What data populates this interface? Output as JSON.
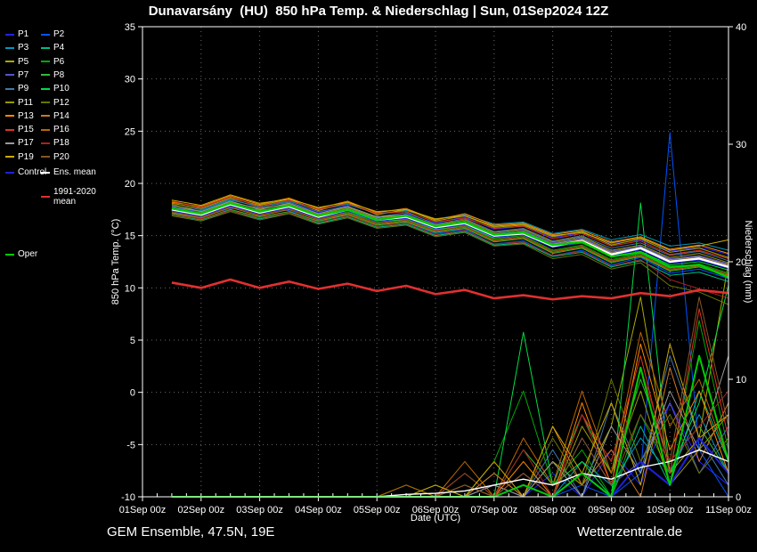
{
  "title": "Dunavarsány  (HU)  850 hPa Temp. & Niederschlag | Sun, 01Sep2024 12Z",
  "footer": {
    "left": "GEM Ensemble, 47.5N, 19E",
    "right": "Wetterzentrale.de"
  },
  "chart_data": {
    "type": "line",
    "title": "Dunavarsány  (HU)  850 hPa Temp. & Niederschlag | Sun, 01Sep2024 12Z",
    "x_axis": {
      "label": "Date (UTC)",
      "range_hours": [
        0,
        240
      ],
      "tick_hours": [
        0,
        24,
        48,
        72,
        96,
        120,
        144,
        168,
        192,
        216,
        240
      ],
      "tick_labels": [
        "01Sep 00z",
        "02Sep 00z",
        "03Sep 00z",
        "04Sep 00z",
        "05Sep 00z",
        "06Sep 00z",
        "07Sep 00z",
        "08Sep 00z",
        "09Sep 00z",
        "10Sep 00z",
        "11Sep 00z"
      ]
    },
    "y_left": {
      "label": "850 hPa Temp. (°C)",
      "min": -10,
      "max": 35,
      "ticks": [
        35,
        30,
        25,
        20,
        15,
        10,
        5,
        0,
        -5,
        -10
      ]
    },
    "y_right": {
      "label": "Niederschlag (mm)",
      "min": 0,
      "max": 40,
      "ticks": [
        40,
        30,
        20,
        10,
        0
      ]
    },
    "x_hours": [
      12,
      24,
      36,
      48,
      60,
      72,
      84,
      96,
      108,
      120,
      132,
      144,
      156,
      168,
      180,
      192,
      204,
      216,
      228,
      240
    ],
    "members": [
      {
        "name": "P1",
        "color": "#2222ff",
        "temp": [
          17.8,
          17.2,
          18.3,
          17.0,
          18.1,
          17.2,
          17.9,
          16.2,
          17.1,
          16.2,
          16.8,
          15.6,
          15.9,
          14.8,
          15.3,
          14.2,
          14.6,
          13.5,
          13.9,
          13.2
        ],
        "precip": [
          0,
          0,
          0,
          0,
          0,
          0,
          0,
          0,
          0,
          0,
          0,
          1,
          0,
          2,
          0,
          4,
          1,
          8,
          3,
          1
        ]
      },
      {
        "name": "P2",
        "color": "#0055ff",
        "temp": [
          17.2,
          16.8,
          17.6,
          17.5,
          17.4,
          16.3,
          17.1,
          16.9,
          16.2,
          15.2,
          15.6,
          14.2,
          14.5,
          13.1,
          13.6,
          12.2,
          12.9,
          11.4,
          11.8,
          10.9
        ],
        "precip": [
          0,
          0,
          0,
          0,
          0,
          0,
          0,
          0,
          0,
          0,
          0,
          0,
          0,
          0,
          1,
          0,
          2,
          31,
          4,
          0
        ]
      },
      {
        "name": "P3",
        "color": "#0099bb",
        "temp": [
          17.6,
          17.4,
          18.4,
          17.8,
          18.3,
          17.5,
          18.0,
          17.1,
          17.4,
          16.6,
          17.0,
          16.1,
          16.3,
          15.2,
          15.6,
          14.6,
          15.1,
          14.0,
          14.3,
          13.6
        ],
        "precip": [
          0,
          0,
          0,
          0,
          0,
          0,
          0,
          0,
          0,
          0,
          1,
          0,
          2,
          0,
          3,
          1,
          5,
          2,
          7,
          2
        ]
      },
      {
        "name": "P4",
        "color": "#00bb88",
        "temp": [
          17.0,
          16.5,
          17.4,
          16.6,
          17.2,
          16.2,
          16.8,
          15.8,
          16.1,
          15.0,
          15.4,
          14.1,
          14.3,
          13.0,
          13.4,
          12.0,
          12.6,
          11.2,
          11.5,
          10.6
        ],
        "precip": [
          0,
          0,
          0,
          0,
          0,
          0,
          0,
          0,
          0,
          0,
          0,
          0,
          1,
          0,
          2,
          0,
          6,
          1,
          9,
          3
        ]
      },
      {
        "name": "P5",
        "color": "#aaaa00",
        "temp": [
          18.1,
          17.6,
          18.6,
          17.9,
          18.5,
          17.4,
          18.2,
          17.0,
          17.5,
          16.4,
          16.9,
          15.8,
          16.0,
          14.9,
          15.4,
          14.1,
          14.7,
          13.4,
          13.8,
          12.9
        ],
        "precip": [
          0,
          0,
          0,
          0,
          0,
          0,
          0,
          0,
          0,
          0,
          0,
          2,
          0,
          3,
          1,
          6,
          17,
          2,
          5,
          20
        ]
      },
      {
        "name": "P6",
        "color": "#00aa00",
        "temp": [
          17.3,
          16.9,
          17.9,
          17.1,
          17.7,
          16.6,
          17.3,
          16.3,
          16.6,
          15.5,
          16.0,
          14.7,
          15.0,
          13.6,
          14.1,
          12.7,
          13.3,
          11.9,
          12.3,
          11.4
        ],
        "precip": [
          0,
          0,
          0,
          0,
          0,
          0,
          0,
          0,
          0,
          1,
          0,
          3,
          9,
          1,
          4,
          0,
          7,
          2,
          15,
          4
        ]
      },
      {
        "name": "P7",
        "color": "#5555cc",
        "temp": [
          17.7,
          17.1,
          18.1,
          17.3,
          17.9,
          16.9,
          17.6,
          16.6,
          16.9,
          15.9,
          16.4,
          15.2,
          15.5,
          14.3,
          14.8,
          13.5,
          14.0,
          12.8,
          13.1,
          12.3
        ],
        "precip": [
          0,
          0,
          0,
          0,
          0,
          0,
          0,
          0,
          0,
          0,
          0,
          0,
          2,
          0,
          5,
          1,
          3,
          8,
          2,
          6
        ]
      },
      {
        "name": "P8",
        "color": "#33bb33",
        "temp": [
          17.1,
          16.6,
          17.5,
          16.8,
          17.3,
          16.4,
          17.0,
          16.0,
          16.3,
          15.3,
          15.7,
          14.4,
          14.7,
          13.3,
          13.8,
          12.4,
          13.0,
          11.6,
          12.0,
          11.1
        ],
        "precip": [
          0,
          0,
          0,
          0,
          0,
          0,
          0,
          0,
          1,
          0,
          2,
          0,
          4,
          1,
          7,
          2,
          10,
          3,
          6,
          2
        ]
      },
      {
        "name": "P9",
        "color": "#4477aa",
        "temp": [
          17.9,
          17.5,
          18.5,
          17.7,
          18.2,
          17.3,
          17.8,
          16.8,
          17.2,
          16.1,
          16.6,
          15.4,
          15.7,
          14.5,
          15.0,
          13.8,
          14.3,
          13.1,
          13.5,
          12.6
        ],
        "precip": [
          0,
          0,
          0,
          0,
          0,
          0,
          0,
          0,
          0,
          0,
          0,
          1,
          0,
          4,
          0,
          8,
          2,
          12,
          5,
          1
        ]
      },
      {
        "name": "P10",
        "color": "#00dd44",
        "temp": [
          17.4,
          17.0,
          17.8,
          17.2,
          17.6,
          16.7,
          17.2,
          16.4,
          16.5,
          15.6,
          15.9,
          14.8,
          15.1,
          13.9,
          14.3,
          13.0,
          13.5,
          12.2,
          12.5,
          11.7
        ],
        "precip": [
          0,
          0,
          0,
          0,
          0,
          0,
          0,
          0,
          0,
          0,
          2,
          0,
          14,
          1,
          3,
          0,
          25,
          2,
          8,
          18
        ]
      },
      {
        "name": "P11",
        "color": "#999900",
        "temp": [
          18.0,
          17.3,
          18.2,
          17.6,
          18.0,
          17.0,
          17.7,
          16.7,
          17.0,
          16.0,
          16.5,
          15.3,
          15.6,
          14.4,
          14.9,
          13.6,
          14.1,
          12.9,
          13.3,
          12.4
        ],
        "precip": [
          0,
          0,
          0,
          0,
          0,
          0,
          0,
          0,
          0,
          0,
          0,
          0,
          1,
          0,
          6,
          2,
          9,
          1,
          4,
          7
        ]
      },
      {
        "name": "P12",
        "color": "#667700",
        "temp": [
          16.9,
          16.4,
          17.3,
          16.5,
          17.1,
          16.1,
          16.7,
          15.7,
          16.0,
          14.9,
          15.3,
          14.0,
          14.2,
          12.8,
          13.2,
          11.8,
          12.4,
          10.2,
          9.6,
          8.4
        ],
        "precip": [
          0,
          0,
          0,
          0,
          0,
          0,
          0,
          0,
          0,
          1,
          0,
          2,
          0,
          5,
          1,
          10,
          3,
          7,
          2,
          5
        ]
      },
      {
        "name": "P13",
        "color": "#ff8800",
        "temp": [
          18.2,
          17.8,
          18.8,
          18.0,
          18.6,
          17.6,
          18.3,
          17.2,
          17.6,
          16.5,
          17.1,
          16.0,
          16.2,
          15.1,
          15.5,
          14.4,
          14.9,
          13.7,
          14.1,
          13.3
        ],
        "precip": [
          0,
          0,
          0,
          0,
          0,
          0,
          0,
          0,
          0,
          0,
          1,
          0,
          3,
          0,
          8,
          1,
          13,
          4,
          9,
          2
        ]
      },
      {
        "name": "P14",
        "color": "#cc7722",
        "temp": [
          17.5,
          17.2,
          18.0,
          17.4,
          17.8,
          16.9,
          17.4,
          16.5,
          16.7,
          15.7,
          16.1,
          15.0,
          15.3,
          14.1,
          14.6,
          13.3,
          13.8,
          12.6,
          12.9,
          12.1
        ],
        "precip": [
          0,
          0,
          0,
          0,
          0,
          0,
          0,
          0,
          0,
          0,
          0,
          2,
          0,
          6,
          1,
          4,
          0,
          11,
          3,
          8
        ]
      },
      {
        "name": "P15",
        "color": "#dd3322",
        "temp": [
          18.3,
          17.7,
          18.7,
          17.8,
          18.4,
          17.5,
          18.1,
          17.1,
          17.3,
          16.3,
          16.7,
          15.7,
          15.9,
          14.7,
          15.2,
          14.0,
          14.5,
          13.2,
          13.6,
          12.8
        ],
        "precip": [
          0,
          0,
          0,
          0,
          0,
          0,
          0,
          0,
          0,
          0,
          0,
          0,
          2,
          0,
          7,
          3,
          12,
          2,
          16,
          5
        ]
      },
      {
        "name": "P16",
        "color": "#bb6600",
        "temp": [
          17.2,
          16.7,
          17.7,
          16.9,
          17.5,
          16.5,
          17.1,
          16.1,
          16.4,
          15.4,
          15.8,
          14.5,
          14.8,
          13.4,
          13.9,
          12.5,
          13.1,
          11.7,
          12.1,
          11.2
        ],
        "precip": [
          0,
          0,
          0,
          0,
          0,
          0,
          0,
          0,
          1,
          0,
          3,
          0,
          5,
          1,
          9,
          2,
          14,
          6,
          10,
          3
        ]
      },
      {
        "name": "P17",
        "color": "#999999",
        "temp": [
          17.8,
          17.3,
          18.3,
          17.5,
          18.1,
          17.1,
          17.8,
          16.8,
          17.0,
          16.0,
          16.3,
          15.1,
          15.4,
          14.2,
          14.7,
          13.4,
          13.9,
          12.7,
          13.0,
          12.2
        ],
        "precip": [
          0,
          0,
          0,
          0,
          0,
          0,
          0,
          0,
          0,
          0,
          0,
          1,
          0,
          3,
          0,
          6,
          2,
          9,
          4,
          12
        ]
      },
      {
        "name": "P18",
        "color": "#aa2222",
        "temp": [
          17.0,
          16.6,
          17.4,
          16.7,
          17.2,
          16.3,
          16.9,
          15.9,
          16.2,
          15.1,
          15.5,
          14.2,
          14.4,
          13.1,
          13.5,
          12.1,
          12.7,
          10.8,
          9.9,
          9.0
        ],
        "precip": [
          0,
          0,
          0,
          0,
          0,
          0,
          0,
          0,
          0,
          0,
          2,
          0,
          4,
          0,
          7,
          1,
          11,
          3,
          6,
          9
        ]
      },
      {
        "name": "P19",
        "color": "#ccaa00",
        "temp": [
          18.4,
          17.9,
          18.9,
          18.1,
          18.5,
          17.7,
          18.2,
          17.3,
          17.5,
          16.6,
          16.9,
          15.9,
          16.1,
          15.0,
          15.3,
          14.3,
          14.8,
          13.6,
          14.0,
          14.6
        ],
        "precip": [
          0,
          0,
          0,
          0,
          0,
          0,
          0,
          0,
          0,
          1,
          0,
          3,
          0,
          6,
          2,
          8,
          1,
          13,
          5,
          7
        ]
      },
      {
        "name": "P20",
        "color": "#885522",
        "temp": [
          17.3,
          16.8,
          17.8,
          17.0,
          17.6,
          16.6,
          17.2,
          16.2,
          16.5,
          15.5,
          15.9,
          14.6,
          14.9,
          13.5,
          14.0,
          12.6,
          13.2,
          11.8,
          12.2,
          11.3
        ],
        "precip": [
          0,
          0,
          0,
          0,
          0,
          0,
          0,
          0,
          0,
          0,
          1,
          0,
          2,
          0,
          5,
          1,
          7,
          3,
          17,
          6
        ]
      }
    ],
    "special": [
      {
        "role": "control",
        "name": "Control",
        "color": "#2020dd",
        "temp": [
          17.4,
          16.9,
          17.9,
          17.1,
          17.7,
          16.7,
          17.4,
          16.4,
          16.7,
          15.7,
          16.1,
          14.9,
          15.1,
          13.9,
          14.4,
          13.1,
          13.7,
          12.4,
          12.7,
          11.9
        ],
        "precip": [
          0,
          0,
          0,
          0,
          0,
          0,
          0,
          0,
          0,
          0,
          0,
          0,
          1,
          0,
          2,
          0,
          3,
          1,
          5,
          2
        ]
      },
      {
        "role": "mean",
        "name": "Ens. mean",
        "color": "#ffffff",
        "temp": [
          17.5,
          17.0,
          18.0,
          17.2,
          17.8,
          16.8,
          17.5,
          16.5,
          16.8,
          15.8,
          16.2,
          15.0,
          15.2,
          14.0,
          14.5,
          13.2,
          13.8,
          12.5,
          12.8,
          12.0
        ],
        "precip": [
          0,
          0,
          0,
          0,
          0,
          0,
          0,
          0,
          0.2,
          0.3,
          0.5,
          1,
          1.5,
          1,
          2,
          1.5,
          2.5,
          3,
          4,
          3
        ]
      },
      {
        "role": "oper",
        "name": "Oper",
        "color": "#00cc00",
        "temp": [
          17.6,
          17.1,
          18.1,
          17.3,
          17.9,
          16.9,
          17.5,
          16.5,
          16.9,
          15.9,
          16.3,
          15.1,
          15.3,
          14.1,
          14.4,
          13.0,
          13.4,
          12.0,
          12.2,
          11.0
        ],
        "precip": [
          0,
          0,
          0,
          0,
          0,
          0,
          0,
          0,
          0,
          0,
          0,
          0,
          1,
          0,
          2,
          0,
          11,
          1,
          12,
          3
        ]
      },
      {
        "role": "climate",
        "name": "1991-2020 mean",
        "color": "#e03030",
        "temp": [
          10.5,
          10.0,
          10.8,
          10.0,
          10.6,
          9.9,
          10.4,
          9.7,
          10.2,
          9.4,
          9.8,
          9.0,
          9.3,
          8.9,
          9.2,
          9.0,
          9.5,
          9.2,
          9.8,
          9.5
        ]
      }
    ]
  }
}
